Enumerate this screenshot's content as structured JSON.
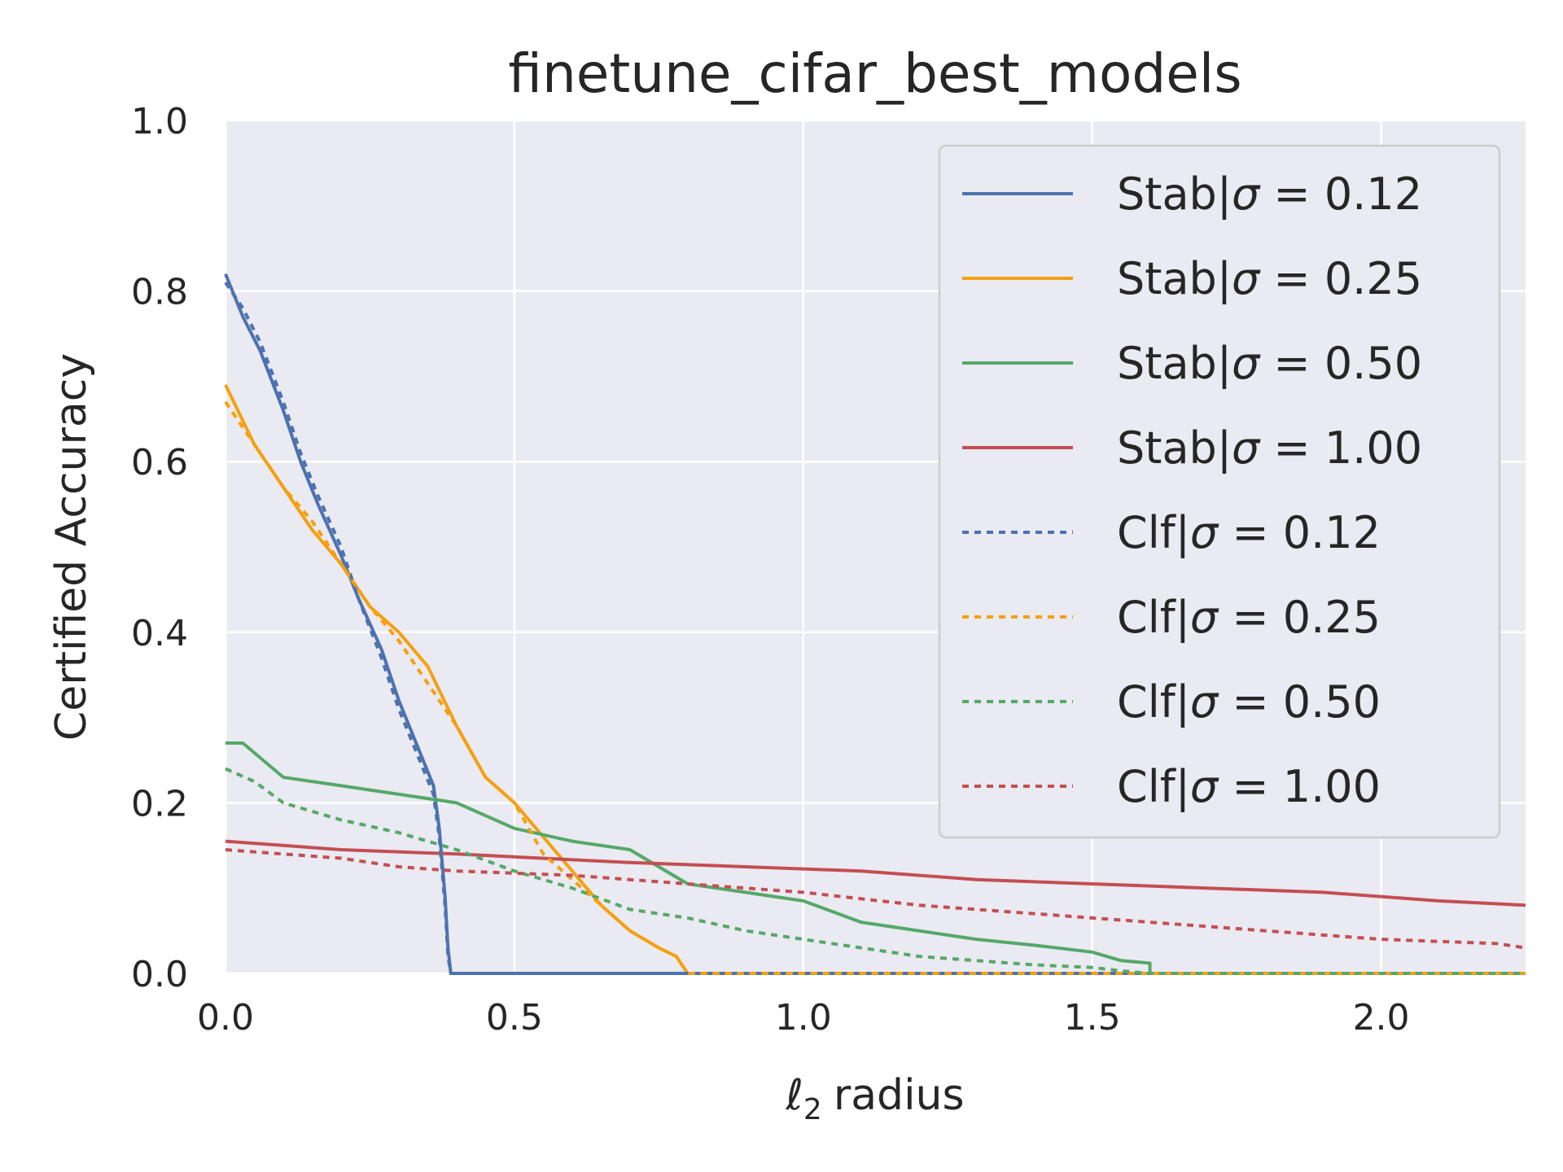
{
  "chart_data": {
    "type": "line",
    "title": "finetune_cifar_best_models",
    "xlabel_symbol": "ℓ",
    "xlabel_sub": "2",
    "xlabel_rest": "radius",
    "ylabel": "Certified Accuracy",
    "xlim": [
      0.0,
      2.25
    ],
    "ylim": [
      0.0,
      1.0
    ],
    "xticks": [
      0.0,
      0.5,
      1.0,
      1.5,
      2.0
    ],
    "xtick_labels": [
      "0.0",
      "0.5",
      "1.0",
      "1.5",
      "2.0"
    ],
    "yticks": [
      0.0,
      0.2,
      0.4,
      0.6,
      0.8,
      1.0
    ],
    "ytick_labels": [
      "0.0",
      "0.2",
      "0.4",
      "0.6",
      "0.8",
      "1.0"
    ],
    "grid": true,
    "legend_position": "upper-right",
    "plot_background": "#eaeaf2",
    "series": [
      {
        "name": "Stab|σ = 0.12",
        "legend_prefix": "Stab|",
        "legend_value": "0.12",
        "color": "#4c72b0",
        "style": "solid",
        "x": [
          0.0,
          0.03,
          0.06,
          0.1,
          0.13,
          0.16,
          0.2,
          0.23,
          0.27,
          0.3,
          0.33,
          0.36,
          0.37,
          0.38,
          0.385,
          0.39,
          2.25
        ],
        "y": [
          0.82,
          0.77,
          0.73,
          0.66,
          0.6,
          0.55,
          0.49,
          0.44,
          0.38,
          0.32,
          0.27,
          0.22,
          0.17,
          0.09,
          0.03,
          0.0,
          0.0
        ]
      },
      {
        "name": "Stab|σ = 0.25",
        "legend_prefix": "Stab|",
        "legend_value": "0.25",
        "color": "#f5a00f",
        "style": "solid",
        "x": [
          0.0,
          0.05,
          0.1,
          0.15,
          0.2,
          0.25,
          0.3,
          0.35,
          0.4,
          0.45,
          0.5,
          0.55,
          0.6,
          0.65,
          0.7,
          0.75,
          0.78,
          0.8,
          2.25
        ],
        "y": [
          0.69,
          0.62,
          0.57,
          0.52,
          0.48,
          0.43,
          0.4,
          0.36,
          0.29,
          0.23,
          0.2,
          0.16,
          0.12,
          0.08,
          0.05,
          0.03,
          0.02,
          0.0,
          0.0
        ]
      },
      {
        "name": "Stab|σ = 0.50",
        "legend_prefix": "Stab|",
        "legend_value": "0.50",
        "color": "#55a868",
        "style": "solid",
        "x": [
          0.0,
          0.03,
          0.1,
          0.2,
          0.3,
          0.4,
          0.5,
          0.6,
          0.7,
          0.8,
          0.9,
          1.0,
          1.1,
          1.2,
          1.3,
          1.4,
          1.5,
          1.55,
          1.6,
          1.6,
          2.25
        ],
        "y": [
          0.27,
          0.27,
          0.23,
          0.22,
          0.21,
          0.2,
          0.17,
          0.155,
          0.145,
          0.105,
          0.095,
          0.085,
          0.06,
          0.05,
          0.04,
          0.033,
          0.025,
          0.015,
          0.012,
          0.0,
          0.0
        ]
      },
      {
        "name": "Stab|σ = 1.00",
        "legend_prefix": "Stab|",
        "legend_value": "1.00",
        "color": "#c44e52",
        "style": "solid",
        "x": [
          0.0,
          0.1,
          0.2,
          0.4,
          0.7,
          0.9,
          1.1,
          1.3,
          1.5,
          1.7,
          1.9,
          2.1,
          2.25
        ],
        "y": [
          0.155,
          0.15,
          0.145,
          0.14,
          0.13,
          0.125,
          0.12,
          0.11,
          0.105,
          0.1,
          0.095,
          0.085,
          0.08
        ]
      },
      {
        "name": "Clf|σ = 0.12",
        "legend_prefix": "Clf|",
        "legend_value": "0.12",
        "color": "#4c72b0",
        "style": "dotted",
        "x": [
          0.0,
          0.03,
          0.06,
          0.1,
          0.13,
          0.16,
          0.2,
          0.23,
          0.27,
          0.3,
          0.33,
          0.36,
          0.37,
          0.38,
          0.385,
          0.39,
          2.25
        ],
        "y": [
          0.81,
          0.78,
          0.74,
          0.67,
          0.61,
          0.56,
          0.5,
          0.44,
          0.37,
          0.31,
          0.26,
          0.21,
          0.16,
          0.08,
          0.02,
          0.0,
          0.0
        ]
      },
      {
        "name": "Clf|σ = 0.25",
        "legend_prefix": "Clf|",
        "legend_value": "0.25",
        "color": "#f5a00f",
        "style": "dotted",
        "x": [
          0.0,
          0.05,
          0.1,
          0.15,
          0.2,
          0.25,
          0.3,
          0.35,
          0.4,
          0.45,
          0.5,
          0.55,
          0.6,
          0.65,
          0.7,
          0.75,
          0.78,
          0.8,
          2.25
        ],
        "y": [
          0.67,
          0.62,
          0.57,
          0.53,
          0.48,
          0.43,
          0.39,
          0.34,
          0.29,
          0.23,
          0.2,
          0.14,
          0.11,
          0.08,
          0.05,
          0.03,
          0.02,
          0.0,
          0.0
        ]
      },
      {
        "name": "Clf|σ = 0.50",
        "legend_prefix": "Clf|",
        "legend_value": "0.50",
        "color": "#55a868",
        "style": "dotted",
        "x": [
          0.0,
          0.05,
          0.1,
          0.2,
          0.3,
          0.4,
          0.5,
          0.6,
          0.7,
          0.8,
          0.9,
          1.0,
          1.1,
          1.2,
          1.3,
          1.4,
          1.5,
          1.55,
          1.6,
          2.25
        ],
        "y": [
          0.24,
          0.225,
          0.2,
          0.18,
          0.165,
          0.145,
          0.12,
          0.1,
          0.075,
          0.065,
          0.05,
          0.04,
          0.03,
          0.02,
          0.015,
          0.01,
          0.007,
          0.003,
          0.0,
          0.0
        ]
      },
      {
        "name": "Clf|σ = 1.00",
        "legend_prefix": "Clf|",
        "legend_value": "1.00",
        "color": "#c44e52",
        "style": "dotted",
        "x": [
          0.0,
          0.1,
          0.2,
          0.3,
          0.4,
          0.6,
          0.8,
          1.0,
          1.2,
          1.4,
          1.6,
          1.8,
          2.0,
          2.2,
          2.25
        ],
        "y": [
          0.145,
          0.14,
          0.135,
          0.125,
          0.12,
          0.115,
          0.105,
          0.095,
          0.08,
          0.07,
          0.06,
          0.05,
          0.04,
          0.035,
          0.03
        ]
      }
    ]
  }
}
